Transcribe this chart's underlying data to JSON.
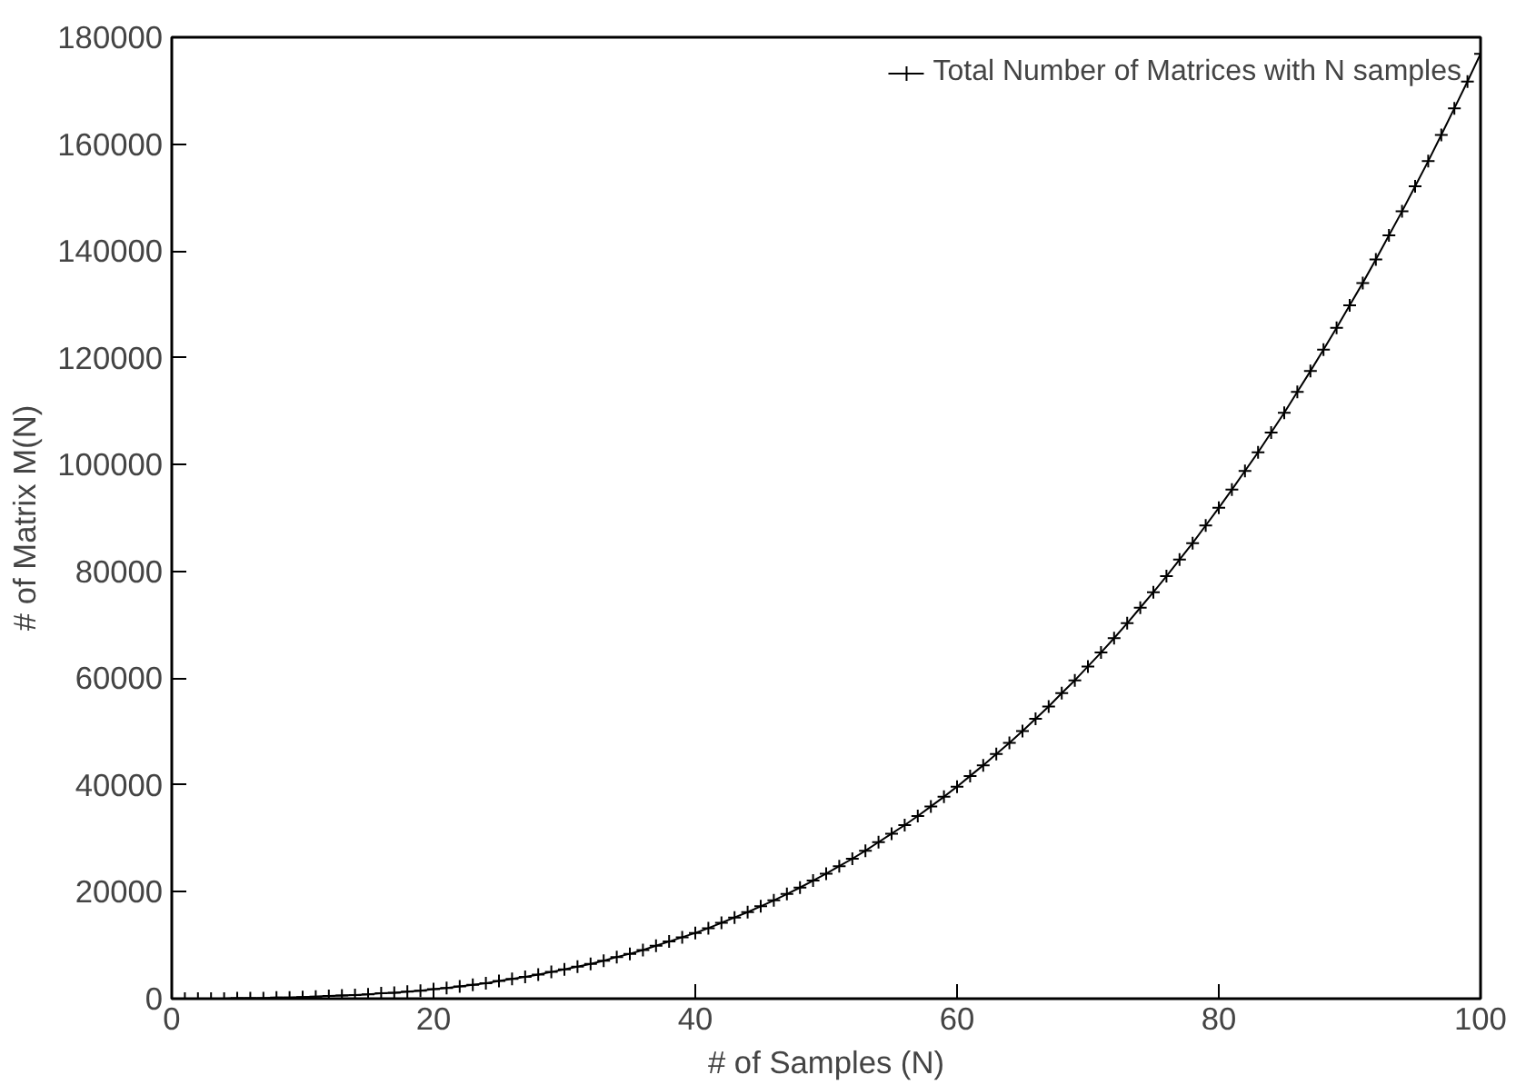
{
  "chart_data": {
    "type": "line",
    "xlabel": "# of Samples (N)",
    "ylabel": "# of Matrix M(N)",
    "xlim": [
      0,
      100
    ],
    "xticks": [
      0,
      20,
      40,
      60,
      80,
      100
    ],
    "ylim": [
      0,
      180000
    ],
    "yticks": [
      0,
      20000,
      40000,
      60000,
      80000,
      100000,
      120000,
      140000,
      160000,
      180000
    ],
    "grid": false,
    "legend": "top right",
    "marker": "cross",
    "line_style": "solid",
    "x": [
      0,
      1,
      2,
      3,
      4,
      5,
      6,
      7,
      8,
      9,
      10,
      11,
      12,
      13,
      14,
      15,
      16,
      17,
      18,
      19,
      20,
      21,
      22,
      23,
      24,
      25,
      26,
      27,
      28,
      29,
      30,
      31,
      32,
      33,
      34,
      35,
      36,
      37,
      38,
      39,
      40,
      41,
      42,
      43,
      44,
      45,
      46,
      47,
      48,
      49,
      50,
      51,
      52,
      53,
      54,
      55,
      56,
      57,
      58,
      59,
      60,
      61,
      62,
      63,
      64,
      65,
      66,
      67,
      68,
      69,
      70,
      71,
      72,
      73,
      74,
      75,
      76,
      77,
      78,
      79,
      80,
      81,
      82,
      83,
      84,
      85,
      86,
      87,
      88,
      89,
      90,
      91,
      92,
      93,
      94,
      95,
      96,
      97,
      98,
      99,
      100
    ],
    "series": [
      {
        "name": "Total Number of Matrices with N samples",
        "color": "#000000",
        "values": [
          0,
          0,
          0,
          0,
          0,
          100,
          100,
          100,
          200,
          200,
          300,
          400,
          500,
          600,
          700,
          800,
          1000,
          1100,
          1300,
          1500,
          1800,
          2000,
          2300,
          2600,
          2900,
          3300,
          3700,
          4100,
          4500,
          5000,
          5500,
          6000,
          6500,
          7100,
          7800,
          8400,
          9100,
          9900,
          10700,
          11500,
          12300,
          13200,
          14200,
          15200,
          16200,
          17300,
          18400,
          19600,
          20800,
          22100,
          23400,
          24800,
          26200,
          27700,
          29300,
          30900,
          32500,
          34200,
          36000,
          37800,
          39700,
          41700,
          43700,
          45800,
          47900,
          50100,
          52400,
          54700,
          57200,
          59600,
          62200,
          64800,
          67500,
          70300,
          73200,
          76100,
          79100,
          82200,
          85300,
          88600,
          91900,
          95300,
          98800,
          102300,
          106000,
          109700,
          113600,
          117500,
          121500,
          125600,
          129800,
          134000,
          138400,
          142900,
          147400,
          152100,
          156800,
          161700,
          166700,
          171700,
          176900
        ]
      }
    ]
  }
}
